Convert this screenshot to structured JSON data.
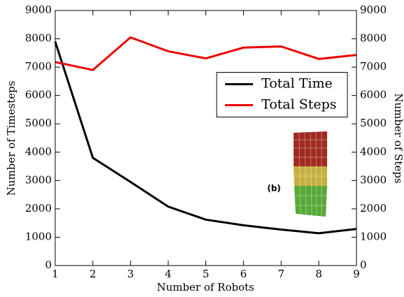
{
  "chart_data": {
    "type": "line",
    "x": [
      1,
      2,
      3,
      4,
      5,
      6,
      7,
      8,
      9
    ],
    "xlabel": "Number of Robots",
    "ylabel": "Number of Timesteps",
    "y2label": "Number of Steps",
    "series": [
      {
        "name": "Total Time",
        "color": "#000000",
        "values": [
          7900,
          3800,
          2950,
          2080,
          1620,
          1420,
          1270,
          1140,
          1290
        ]
      },
      {
        "name": "Total Steps",
        "color": "#ee0000",
        "axis": "y2",
        "values": [
          7180,
          6900,
          8050,
          7560,
          7310,
          7690,
          7730,
          7290,
          7430
        ]
      }
    ],
    "xlim": [
      1,
      9
    ],
    "xticks": [
      1,
      2,
      3,
      4,
      5,
      6,
      7,
      8,
      9
    ],
    "ylim": [
      0,
      9000
    ],
    "yticks": [
      0,
      1000,
      2000,
      3000,
      4000,
      5000,
      6000,
      7000,
      8000,
      9000
    ],
    "y2lim": [
      0,
      9000
    ],
    "y2ticks": [
      0,
      1000,
      2000,
      3000,
      4000,
      5000,
      6000,
      7000,
      8000,
      9000
    ],
    "grid": false,
    "legend": "center right",
    "annotation": "(b)"
  }
}
